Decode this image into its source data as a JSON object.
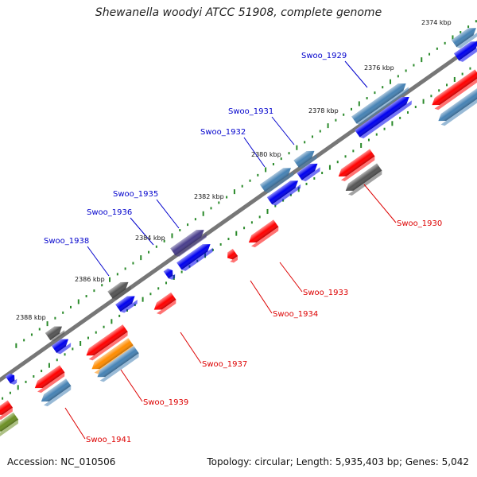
{
  "title": "Shewanella woodyi ATCC 51908, complete genome",
  "footer": {
    "accession": "Accession: NC_010506",
    "summary": "Topology: circular; Length: 5,935,403 bp; Genes: 5,042"
  },
  "colors": {
    "background": "#ffffff",
    "backbone": "#7a7a7a",
    "tick": "#2a8a2a",
    "gene_label_forward": "#0000cc",
    "gene_label_reverse": "#dd0000",
    "gene_red": "#ff0000",
    "gene_blue": "#0000ee",
    "gene_steelblue": "#4682b4",
    "gene_gray": "#555555",
    "gene_darkslate": "#483d8b",
    "gene_orange": "#ff8c00",
    "gene_olive": "#6b8e23"
  },
  "scale_labels": [
    "2374 kbp",
    "2376 kbp",
    "2378 kbp",
    "2380 kbp",
    "2382 kbp",
    "2384 kbp",
    "2386 kbp",
    "2388 kbp"
  ],
  "forward_gene_labels": [
    "Swoo_1929",
    "Swoo_1931",
    "Swoo_1932",
    "Swoo_1935",
    "Swoo_1936",
    "Swoo_1938"
  ],
  "reverse_gene_labels": [
    "Swoo_1930",
    "Swoo_1933",
    "Swoo_1934",
    "Swoo_1937",
    "Swoo_1939",
    "Swoo_1941"
  ]
}
